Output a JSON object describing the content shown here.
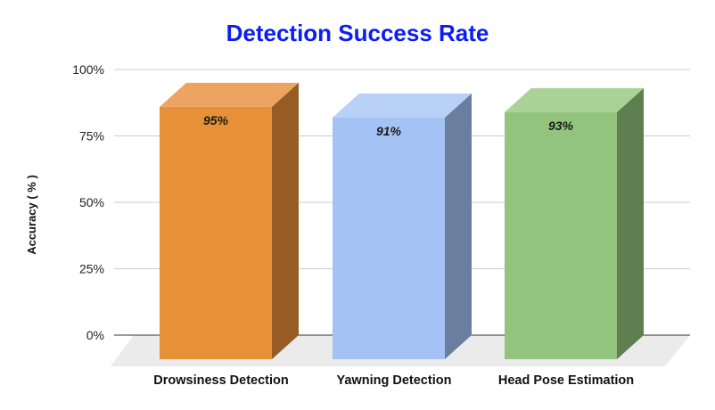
{
  "chart_data": {
    "type": "bar",
    "title": "Detection Success Rate",
    "xlabel": "",
    "ylabel": "Accuracy ( % )",
    "categories": [
      "Drowsiness Detection",
      "Yawning Detection",
      "Head Pose Estimation"
    ],
    "values": [
      95,
      91,
      93
    ],
    "data_labels": [
      "95%",
      "91%",
      "93%"
    ],
    "y_ticks": [
      "0%",
      "25%",
      "50%",
      "75%",
      "100%"
    ],
    "y_tick_values": [
      0,
      25,
      50,
      75,
      100
    ],
    "ylim": [
      0,
      100
    ],
    "grid": true,
    "style": "3d-column",
    "colors": {
      "title": "#0b1df2",
      "bars": [
        {
          "front": "#e69138",
          "top": "#eca460",
          "side": "#975c25"
        },
        {
          "front": "#a4c2f4",
          "top": "#b9d1f7",
          "side": "#6a7fa0"
        },
        {
          "front": "#93c47d",
          "top": "#a9d296",
          "side": "#5f7f50"
        }
      ],
      "floor": "#ebebeb",
      "gridline": "#cccccc"
    }
  }
}
